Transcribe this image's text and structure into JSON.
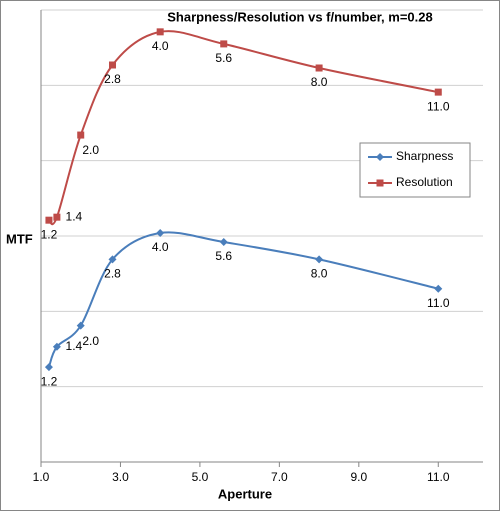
{
  "chart_data": {
    "type": "line",
    "title": "Sharpness/Resolution vs f/number, m=0.28",
    "x_label": "Aperture",
    "y_label": "MTF",
    "x": [
      1.2,
      1.4,
      2.0,
      2.8,
      4.0,
      5.6,
      8.0,
      11.0
    ],
    "x_labels": [
      "1.2",
      "1.4",
      "2.0",
      "2.8",
      "4.0",
      "5.6",
      "8.0",
      "11.0"
    ],
    "series": [
      {
        "name": "Sharpness",
        "color": "#4a7ebb",
        "marker": "diamond",
        "values": [
          1.26,
          1.53,
          1.81,
          2.69,
          3.04,
          2.92,
          2.69,
          2.3
        ]
      },
      {
        "name": "Resolution",
        "color": "#be4b48",
        "marker": "square",
        "values": [
          3.21,
          3.25,
          4.34,
          5.27,
          5.71,
          5.55,
          5.23,
          4.91
        ]
      }
    ],
    "xlim": [
      1,
      12
    ],
    "xticks": [
      {
        "value": 1,
        "label": "1.0"
      },
      {
        "value": 3,
        "label": "3.0"
      },
      {
        "value": 5,
        "label": "5.0"
      },
      {
        "value": 7,
        "label": "7.0"
      },
      {
        "value": 9,
        "label": "9.0"
      },
      {
        "value": 11,
        "label": "11.0"
      }
    ],
    "ylim": [
      0,
      6
    ],
    "yticks": [
      0,
      1,
      2,
      3,
      4,
      5,
      6
    ],
    "grid": true,
    "smooth": true,
    "legend": "right"
  }
}
